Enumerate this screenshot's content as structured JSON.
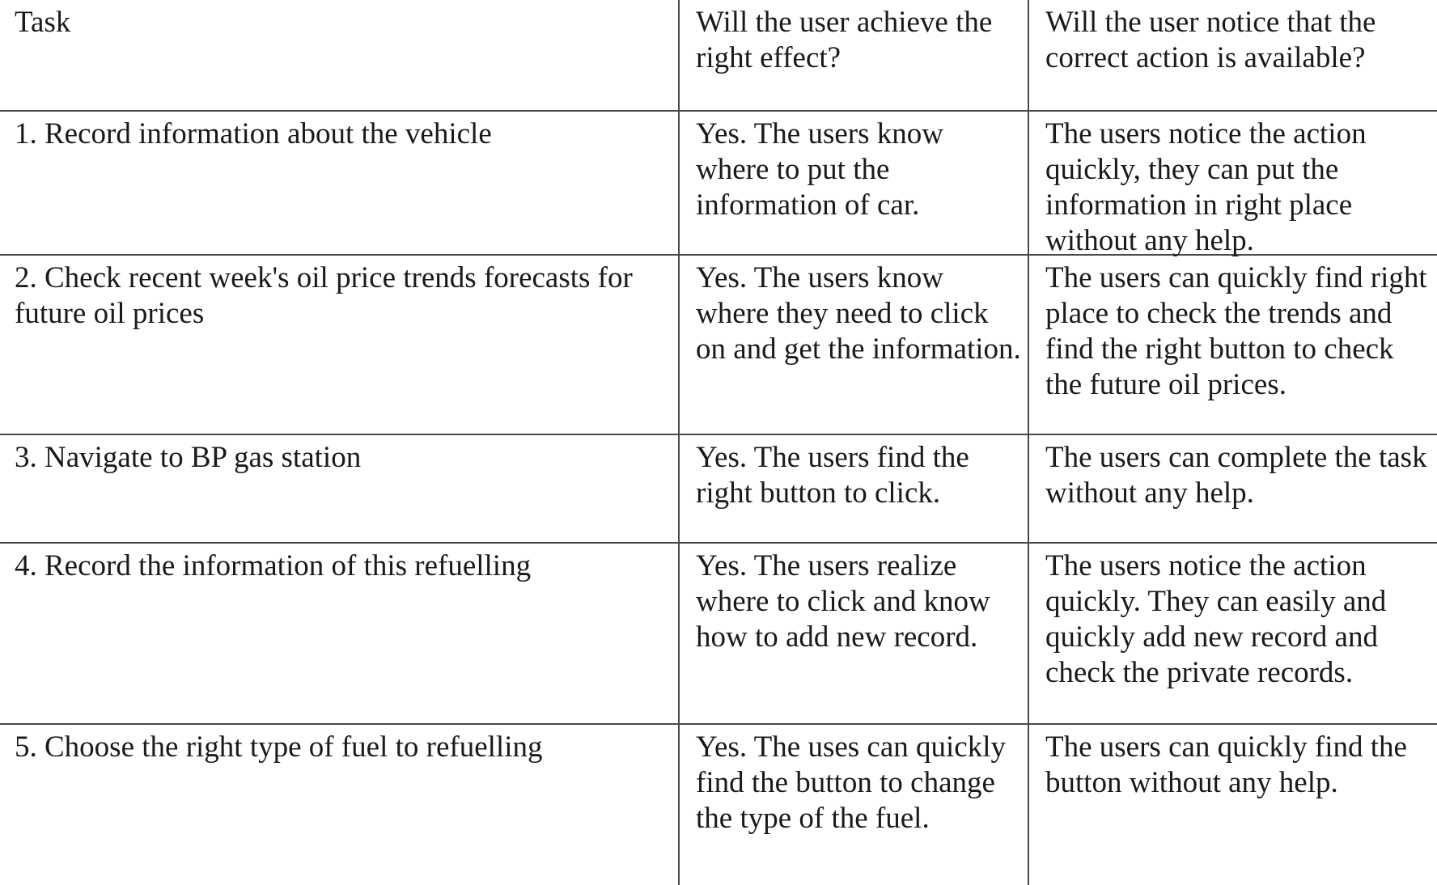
{
  "table": {
    "headers": [
      "Task",
      "Will the user achieve the right effect?",
      "Will the user notice that the correct action is available?"
    ],
    "rows": [
      {
        "task": "1. Record information about the vehicle",
        "achieve": "Yes. The users know where to put the information of car.",
        "notice": "The users notice the action quickly, they can put the information in right place without any help."
      },
      {
        "task": "2. Check recent week's oil price trends forecasts for future oil prices",
        "achieve": "Yes. The users know where they need to click on and get the information.",
        "notice": "The users can quickly find right place to check the trends and find the right button to check the future oil prices."
      },
      {
        "task": "3. Navigate to BP gas station",
        "achieve": "Yes. The users find the right button to click.",
        "notice": "The users can complete the task without any help."
      },
      {
        "task": "4. Record the information of this refuelling",
        "achieve": "Yes. The users realize where to click and know how to add new record.",
        "notice": "The users notice the action quickly. They can easily and quickly add new record and check the private records."
      },
      {
        "task": "5. Choose the right type of fuel to refuelling",
        "achieve": "Yes. The uses can quickly find the button to change the type of the fuel.",
        "notice": "The users can quickly find the button without any help."
      }
    ]
  }
}
